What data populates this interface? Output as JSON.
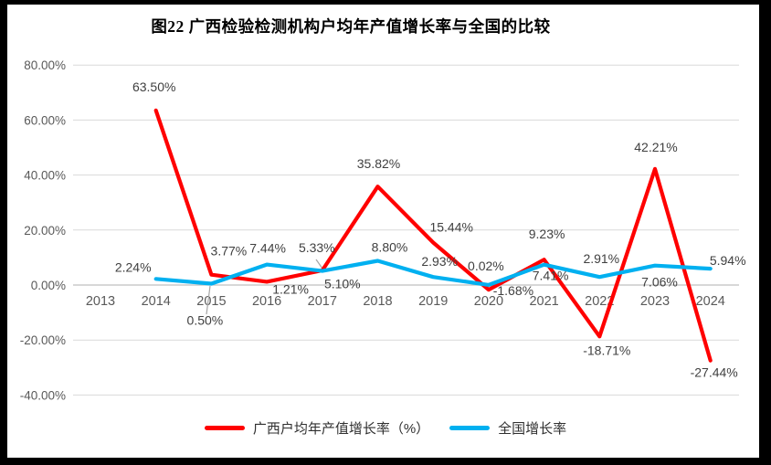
{
  "title": "图22 广西检验检测机构户均年产值增长率与全国的比较",
  "chart_data": {
    "type": "line",
    "title": "图22 广西检验检测机构户均年产值增长率与全国的比较",
    "categories": [
      "2013",
      "2014",
      "2015",
      "2016",
      "2017",
      "2018",
      "2019",
      "2020",
      "2021",
      "2022",
      "2023",
      "2024"
    ],
    "series": [
      {
        "name": "广西户均年产值增长率（%）",
        "color": "#FF0000",
        "values": [
          null,
          63.5,
          3.77,
          1.21,
          5.33,
          35.82,
          15.44,
          -1.68,
          9.23,
          -18.71,
          42.21,
          -27.44
        ],
        "data_labels": [
          "",
          "63.50%",
          "3.77%",
          "1.21%",
          "5.33%",
          "35.82%",
          "15.44%",
          "-1.68%",
          "9.23%",
          "-18.71%",
          "42.21%",
          "-27.44%"
        ]
      },
      {
        "name": "全国增长率",
        "color": "#00B0F0",
        "values": [
          null,
          2.24,
          0.5,
          7.44,
          5.1,
          8.8,
          2.93,
          0.02,
          7.41,
          2.91,
          7.06,
          5.94
        ],
        "data_labels": [
          "",
          "2.24%",
          "0.50%",
          "7.44%",
          "5.10%",
          "8.80%",
          "2.93%",
          "0.02%",
          "7.41%",
          "2.91%",
          "7.06%",
          "5.94%"
        ]
      }
    ],
    "ylim": [
      -40,
      80
    ],
    "ytick_values": [
      80,
      60,
      40,
      20,
      0,
      -20,
      -40
    ],
    "ytick_labels": [
      "80.00%",
      "60.00%",
      "40.00%",
      "20.00%",
      "0.00%",
      "-20.00%",
      "-40.00%"
    ],
    "grid": true,
    "legend_position": "bottom"
  },
  "colors": {
    "series_guangxi": "#FF0000",
    "series_national": "#00B0F0",
    "grid": "#D9D9D9",
    "zero_line": "#BFBFBF",
    "axis_text": "#595959",
    "label_text": "#404040",
    "leader_line": "#A6A6A6",
    "background": "#FFFFFF",
    "frame_border": "#000000"
  }
}
